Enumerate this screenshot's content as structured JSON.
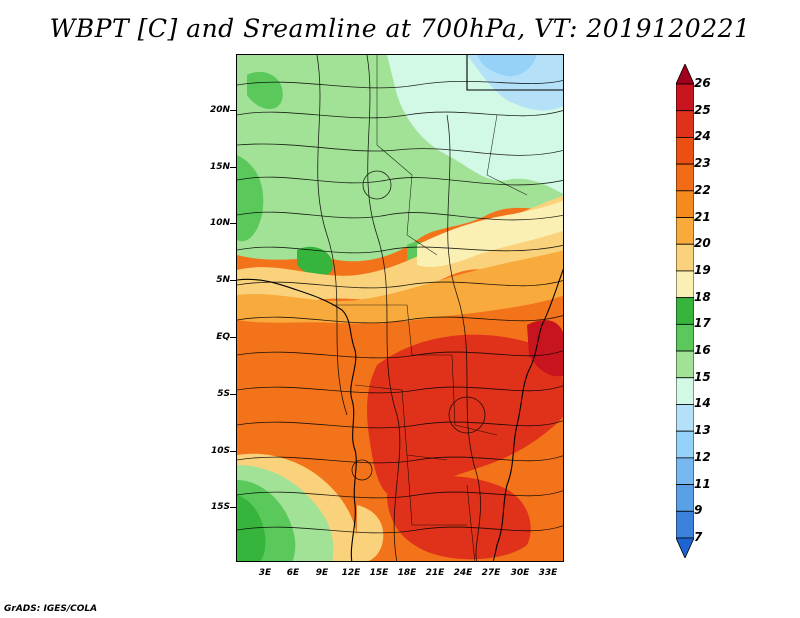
{
  "title": "WBPT [C] and Sreamline at 700hPa, VT: 2019120221",
  "footer": "GrADS: IGES/COLA",
  "map": {
    "latitude_labels": [
      "20N",
      "15N",
      "10N",
      "5N",
      "EQ",
      "5S",
      "10S",
      "15S"
    ],
    "longitude_labels": [
      "3E",
      "6E",
      "9E",
      "12E",
      "15E",
      "18E",
      "21E",
      "24E",
      "27E",
      "30E",
      "33E"
    ]
  },
  "colorbar": {
    "labels": [
      "26",
      "25",
      "24",
      "23",
      "22",
      "21",
      "20",
      "19",
      "18",
      "17",
      "16",
      "15",
      "14",
      "13",
      "12",
      "11",
      "9",
      "7"
    ],
    "colors": [
      "#a0001e",
      "#c8141e",
      "#e0321a",
      "#ec4f12",
      "#f26b16",
      "#f58a1e",
      "#f8aa3c",
      "#fbd27c",
      "#fbf0b4",
      "#37b43c",
      "#5ac85a",
      "#a2e296",
      "#d2f8e6",
      "#b4e0f8",
      "#96d2f8",
      "#78b8f0",
      "#5aa0e6",
      "#3c82dc",
      "#1e64d2"
    ]
  }
}
